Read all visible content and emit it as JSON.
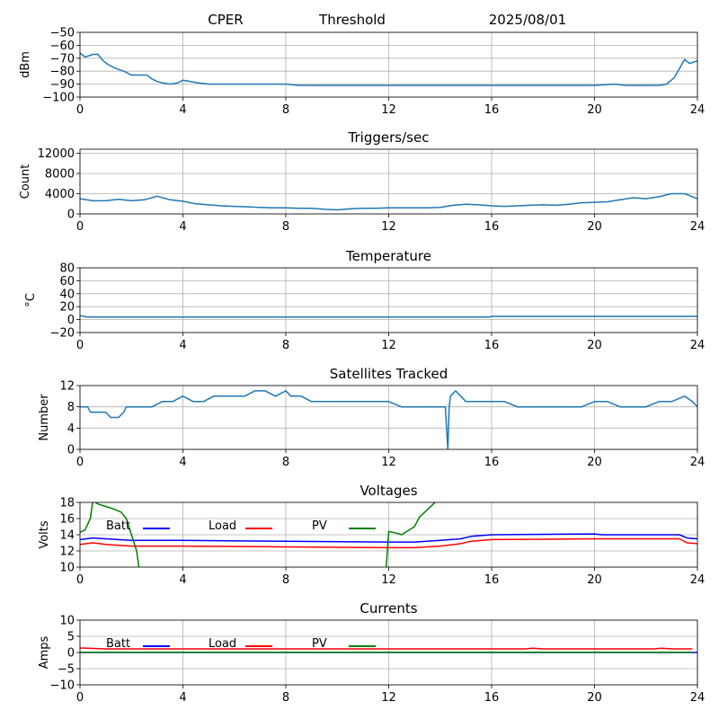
{
  "header": {
    "site": "CPER",
    "label": "Threshold",
    "date": "2025/08/01"
  },
  "colors": {
    "series": "#1f77b4",
    "batt": "#0000ff",
    "load": "#ff0000",
    "pv": "#008000",
    "grid": "#b0b0b0"
  },
  "chart_data": [
    {
      "id": "threshold",
      "type": "line",
      "title": "",
      "xlabel": "",
      "ylabel": "dBm",
      "xlim": [
        0,
        24
      ],
      "ylim": [
        -100,
        -50
      ],
      "xticks": [
        "0",
        "4",
        "8",
        "12",
        "16",
        "20",
        "24"
      ],
      "yticks": [
        "-50",
        "-60",
        "-70",
        "-80",
        "-90",
        "-100"
      ],
      "grid": true,
      "series": [
        {
          "x": [
            0,
            0.2,
            0.5,
            0.7,
            0.9,
            1.1,
            1.4,
            1.7,
            2.0,
            2.4,
            2.6,
            2.8,
            3.0,
            3.2,
            3.5,
            3.8,
            4.0,
            4.3,
            4.6,
            5.0,
            6.0,
            7.0,
            8.0,
            8.5,
            9.0,
            10.0,
            11.0,
            12.0,
            13.0,
            14.0,
            15.0,
            16.0,
            17.0,
            18.0,
            19.0,
            20.0,
            20.8,
            21.2,
            22.0,
            22.5,
            22.8,
            23.1,
            23.3,
            23.5,
            23.7,
            24.0
          ],
          "y": [
            -66,
            -69,
            -67,
            -67,
            -72,
            -75,
            -78,
            -80,
            -83,
            -83,
            -83,
            -86,
            -88,
            -89,
            -90,
            -89,
            -87,
            -88,
            -89,
            -90,
            -90,
            -90,
            -90,
            -91,
            -91,
            -91,
            -91,
            -91,
            -91,
            -91,
            -91,
            -91,
            -91,
            -91,
            -91,
            -91,
            -90,
            -91,
            -91,
            -91,
            -90,
            -85,
            -78,
            -71,
            -74,
            -72
          ]
        }
      ]
    },
    {
      "id": "triggers",
      "type": "line",
      "title": "Triggers/sec",
      "xlabel": "",
      "ylabel": "Count",
      "xlim": [
        0,
        24
      ],
      "ylim": [
        0,
        12800
      ],
      "xticks": [
        "0",
        "4",
        "8",
        "12",
        "16",
        "20",
        "24"
      ],
      "yticks": [
        "0",
        "4000",
        "8000",
        "12000"
      ],
      "grid": true,
      "series": [
        {
          "x": [
            0,
            0.5,
            1.0,
            1.5,
            2.0,
            2.5,
            3.0,
            3.5,
            4.0,
            4.5,
            5.0,
            5.5,
            6.0,
            6.5,
            7.0,
            7.5,
            8.0,
            8.5,
            9.0,
            9.5,
            10.0,
            10.5,
            11.0,
            11.5,
            12.0,
            12.5,
            13.0,
            13.5,
            14.0,
            14.5,
            15.0,
            15.5,
            16.0,
            16.5,
            17.0,
            17.5,
            18.0,
            18.5,
            19.0,
            19.5,
            20.0,
            20.5,
            21.0,
            21.5,
            22.0,
            22.5,
            23.0,
            23.5,
            24.0
          ],
          "y": [
            3000,
            2600,
            2600,
            2900,
            2600,
            2800,
            3500,
            2800,
            2500,
            2000,
            1800,
            1600,
            1500,
            1400,
            1300,
            1200,
            1200,
            1100,
            1100,
            900,
            800,
            1000,
            1100,
            1100,
            1200,
            1200,
            1200,
            1200,
            1300,
            1700,
            1900,
            1800,
            1600,
            1500,
            1600,
            1700,
            1800,
            1700,
            1900,
            2200,
            2300,
            2400,
            2800,
            3200,
            3000,
            3400,
            4000,
            4000,
            3000
          ]
        }
      ]
    },
    {
      "id": "temperature",
      "type": "line",
      "title": "Temperature",
      "xlabel": "",
      "ylabel": "°C",
      "xlim": [
        0,
        24
      ],
      "ylim": [
        -20,
        80
      ],
      "xticks": [
        "0",
        "4",
        "8",
        "12",
        "16",
        "20",
        "24"
      ],
      "yticks": [
        "80",
        "60",
        "40",
        "20",
        "0",
        "-20"
      ],
      "grid": true,
      "series": [
        {
          "x": [
            0,
            0.3,
            15.9,
            16.0,
            24.0
          ],
          "y": [
            6,
            4,
            4,
            5,
            5
          ]
        }
      ]
    },
    {
      "id": "satellites",
      "type": "line",
      "title": "Satellites Tracked",
      "xlabel": "",
      "ylabel": "Number",
      "xlim": [
        0,
        24
      ],
      "ylim": [
        0,
        12
      ],
      "xticks": [
        "0",
        "4",
        "8",
        "12",
        "16",
        "20",
        "24"
      ],
      "yticks": [
        "0",
        "4",
        "8",
        "12"
      ],
      "grid": true,
      "series": [
        {
          "x": [
            0,
            0.3,
            0.4,
            0.7,
            1.0,
            1.2,
            1.5,
            1.7,
            1.8,
            2.3,
            2.8,
            3.2,
            3.6,
            4.0,
            4.4,
            4.8,
            5.2,
            5.6,
            6.0,
            6.4,
            6.8,
            7.2,
            7.6,
            8.0,
            8.2,
            8.6,
            9.0,
            9.5,
            10.0,
            10.5,
            11.0,
            11.5,
            12.0,
            12.5,
            13.0,
            13.5,
            14.0,
            14.2,
            14.3,
            14.35,
            14.4,
            14.6,
            14.8,
            15.0,
            15.5,
            16.0,
            16.5,
            17.0,
            17.5,
            18.0,
            18.5,
            19.0,
            19.5,
            20.0,
            20.5,
            21.0,
            21.5,
            22.0,
            22.5,
            23.0,
            23.5,
            23.8,
            24.0
          ],
          "y": [
            8,
            8,
            7,
            7,
            7,
            6,
            6,
            7,
            8,
            8,
            8,
            9,
            9,
            10,
            9,
            9,
            10,
            10,
            10,
            10,
            11,
            11,
            10,
            11,
            10,
            10,
            9,
            9,
            9,
            9,
            9,
            9,
            9,
            8,
            8,
            8,
            8,
            8,
            0,
            8,
            10,
            11,
            10,
            9,
            9,
            9,
            9,
            8,
            8,
            8,
            8,
            8,
            8,
            9,
            9,
            8,
            8,
            8,
            9,
            9,
            10,
            9,
            8
          ]
        }
      ]
    },
    {
      "id": "voltages",
      "type": "line",
      "title": "Voltages",
      "xlabel": "",
      "ylabel": "Volts",
      "xlim": [
        0,
        24
      ],
      "ylim": [
        10,
        18
      ],
      "xticks": [
        "0",
        "4",
        "8",
        "12",
        "16",
        "20",
        "24"
      ],
      "yticks": [
        "10",
        "12",
        "14",
        "16",
        "18"
      ],
      "grid": true,
      "legend": [
        {
          "name": "Batt",
          "color": "#0000ff"
        },
        {
          "name": "Load",
          "color": "#ff0000"
        },
        {
          "name": "PV",
          "color": "#008000"
        }
      ],
      "series": [
        {
          "name": "Batt",
          "color": "#0000ff",
          "x": [
            0,
            0.5,
            1.0,
            2.0,
            4.0,
            8.0,
            12.0,
            13.0,
            14.0,
            14.8,
            15.2,
            16.0,
            20.0,
            20.3,
            23.3,
            23.6,
            24.0
          ],
          "y": [
            13.4,
            13.6,
            13.5,
            13.3,
            13.3,
            13.2,
            13.1,
            13.1,
            13.3,
            13.5,
            13.8,
            14.0,
            14.1,
            14.0,
            14.0,
            13.6,
            13.5
          ]
        },
        {
          "name": "Load",
          "color": "#ff0000",
          "x": [
            0,
            0.5,
            1.0,
            2.0,
            4.0,
            8.0,
            12.0,
            13.0,
            14.0,
            14.8,
            15.2,
            16.0,
            20.0,
            23.3,
            23.6,
            24.0
          ],
          "y": [
            12.8,
            13.0,
            12.8,
            12.6,
            12.6,
            12.5,
            12.4,
            12.4,
            12.6,
            12.9,
            13.2,
            13.4,
            13.5,
            13.5,
            13.0,
            12.9
          ]
        },
        {
          "name": "PV",
          "color": "#008000",
          "x": [
            0,
            0.2,
            0.4,
            0.5,
            0.7,
            1.0,
            1.3,
            1.6,
            1.8,
            2.0,
            2.2,
            2.3,
            11.9,
            12.0,
            12.3,
            12.5,
            12.8,
            13.0,
            13.2,
            13.4,
            13.6,
            13.8,
            14.0
          ],
          "y": [
            14.3,
            14.6,
            16.0,
            18.2,
            17.8,
            17.5,
            17.2,
            16.8,
            16.0,
            14.0,
            12.0,
            9.8,
            9.8,
            14.4,
            14.2,
            14.0,
            14.6,
            15.0,
            16.2,
            16.8,
            17.4,
            18.0,
            18.4
          ]
        }
      ]
    },
    {
      "id": "currents",
      "type": "line",
      "title": "Currents",
      "xlabel": "",
      "ylabel": "Amps",
      "xlim": [
        0,
        24
      ],
      "ylim": [
        -10,
        10
      ],
      "xticks": [
        "0",
        "4",
        "8",
        "12",
        "16",
        "20",
        "24"
      ],
      "yticks": [
        "10",
        "5",
        "0",
        "-5",
        "-10"
      ],
      "grid": true,
      "legend": [
        {
          "name": "Batt",
          "color": "#0000ff"
        },
        {
          "name": "Load",
          "color": "#ff0000"
        },
        {
          "name": "PV",
          "color": "#008000"
        }
      ],
      "series": [
        {
          "name": "Batt",
          "color": "#0000ff",
          "x": [
            0,
            24
          ],
          "y": [
            0,
            0
          ]
        },
        {
          "name": "Load",
          "color": "#ff0000",
          "x": [
            0,
            0.3,
            1.0,
            8.0,
            16.0,
            17.3,
            17.6,
            18.0,
            22.3,
            22.6,
            23.0,
            23.8
          ],
          "y": [
            1.4,
            1.3,
            1.1,
            1.1,
            1.1,
            1.1,
            1.3,
            1.1,
            1.1,
            1.3,
            1.1,
            1.1
          ]
        },
        {
          "name": "PV",
          "color": "#008000",
          "x": [
            0,
            23.8
          ],
          "y": [
            0.05,
            0.05
          ]
        }
      ]
    }
  ]
}
